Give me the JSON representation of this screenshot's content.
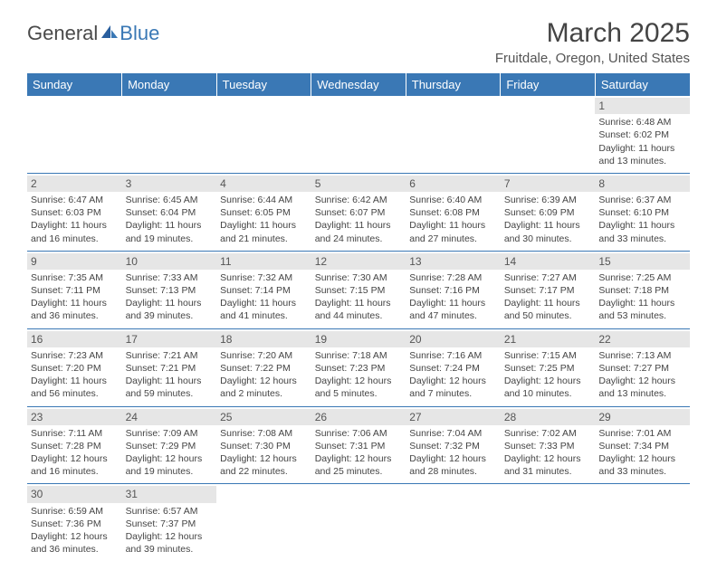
{
  "logo": {
    "part1": "General",
    "part2": "Blue"
  },
  "title": "March 2025",
  "subtitle": "Fruitdale, Oregon, United States",
  "colors": {
    "header_bg": "#3a78b5",
    "header_fg": "#ffffff",
    "daynum_bg": "#e6e6e6",
    "border": "#3a78b5",
    "text": "#444444"
  },
  "day_labels": [
    "Sunday",
    "Monday",
    "Tuesday",
    "Wednesday",
    "Thursday",
    "Friday",
    "Saturday"
  ],
  "weeks": [
    [
      null,
      null,
      null,
      null,
      null,
      null,
      {
        "n": "1",
        "sr": "6:48 AM",
        "ss": "6:02 PM",
        "dl": "11 hours and 13 minutes."
      }
    ],
    [
      {
        "n": "2",
        "sr": "6:47 AM",
        "ss": "6:03 PM",
        "dl": "11 hours and 16 minutes."
      },
      {
        "n": "3",
        "sr": "6:45 AM",
        "ss": "6:04 PM",
        "dl": "11 hours and 19 minutes."
      },
      {
        "n": "4",
        "sr": "6:44 AM",
        "ss": "6:05 PM",
        "dl": "11 hours and 21 minutes."
      },
      {
        "n": "5",
        "sr": "6:42 AM",
        "ss": "6:07 PM",
        "dl": "11 hours and 24 minutes."
      },
      {
        "n": "6",
        "sr": "6:40 AM",
        "ss": "6:08 PM",
        "dl": "11 hours and 27 minutes."
      },
      {
        "n": "7",
        "sr": "6:39 AM",
        "ss": "6:09 PM",
        "dl": "11 hours and 30 minutes."
      },
      {
        "n": "8",
        "sr": "6:37 AM",
        "ss": "6:10 PM",
        "dl": "11 hours and 33 minutes."
      }
    ],
    [
      {
        "n": "9",
        "sr": "7:35 AM",
        "ss": "7:11 PM",
        "dl": "11 hours and 36 minutes."
      },
      {
        "n": "10",
        "sr": "7:33 AM",
        "ss": "7:13 PM",
        "dl": "11 hours and 39 minutes."
      },
      {
        "n": "11",
        "sr": "7:32 AM",
        "ss": "7:14 PM",
        "dl": "11 hours and 41 minutes."
      },
      {
        "n": "12",
        "sr": "7:30 AM",
        "ss": "7:15 PM",
        "dl": "11 hours and 44 minutes."
      },
      {
        "n": "13",
        "sr": "7:28 AM",
        "ss": "7:16 PM",
        "dl": "11 hours and 47 minutes."
      },
      {
        "n": "14",
        "sr": "7:27 AM",
        "ss": "7:17 PM",
        "dl": "11 hours and 50 minutes."
      },
      {
        "n": "15",
        "sr": "7:25 AM",
        "ss": "7:18 PM",
        "dl": "11 hours and 53 minutes."
      }
    ],
    [
      {
        "n": "16",
        "sr": "7:23 AM",
        "ss": "7:20 PM",
        "dl": "11 hours and 56 minutes."
      },
      {
        "n": "17",
        "sr": "7:21 AM",
        "ss": "7:21 PM",
        "dl": "11 hours and 59 minutes."
      },
      {
        "n": "18",
        "sr": "7:20 AM",
        "ss": "7:22 PM",
        "dl": "12 hours and 2 minutes."
      },
      {
        "n": "19",
        "sr": "7:18 AM",
        "ss": "7:23 PM",
        "dl": "12 hours and 5 minutes."
      },
      {
        "n": "20",
        "sr": "7:16 AM",
        "ss": "7:24 PM",
        "dl": "12 hours and 7 minutes."
      },
      {
        "n": "21",
        "sr": "7:15 AM",
        "ss": "7:25 PM",
        "dl": "12 hours and 10 minutes."
      },
      {
        "n": "22",
        "sr": "7:13 AM",
        "ss": "7:27 PM",
        "dl": "12 hours and 13 minutes."
      }
    ],
    [
      {
        "n": "23",
        "sr": "7:11 AM",
        "ss": "7:28 PM",
        "dl": "12 hours and 16 minutes."
      },
      {
        "n": "24",
        "sr": "7:09 AM",
        "ss": "7:29 PM",
        "dl": "12 hours and 19 minutes."
      },
      {
        "n": "25",
        "sr": "7:08 AM",
        "ss": "7:30 PM",
        "dl": "12 hours and 22 minutes."
      },
      {
        "n": "26",
        "sr": "7:06 AM",
        "ss": "7:31 PM",
        "dl": "12 hours and 25 minutes."
      },
      {
        "n": "27",
        "sr": "7:04 AM",
        "ss": "7:32 PM",
        "dl": "12 hours and 28 minutes."
      },
      {
        "n": "28",
        "sr": "7:02 AM",
        "ss": "7:33 PM",
        "dl": "12 hours and 31 minutes."
      },
      {
        "n": "29",
        "sr": "7:01 AM",
        "ss": "7:34 PM",
        "dl": "12 hours and 33 minutes."
      }
    ],
    [
      {
        "n": "30",
        "sr": "6:59 AM",
        "ss": "7:36 PM",
        "dl": "12 hours and 36 minutes."
      },
      {
        "n": "31",
        "sr": "6:57 AM",
        "ss": "7:37 PM",
        "dl": "12 hours and 39 minutes."
      },
      null,
      null,
      null,
      null,
      null
    ]
  ],
  "labels": {
    "sunrise": "Sunrise:",
    "sunset": "Sunset:",
    "daylight": "Daylight:"
  }
}
